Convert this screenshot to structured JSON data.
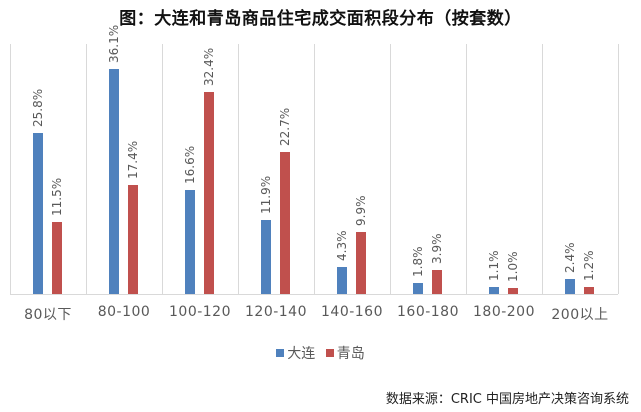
{
  "chart_data": {
    "type": "bar",
    "title": "图：大连和青岛商品住宅成交面积段分布（按套数）",
    "xlabel": "",
    "ylabel": "",
    "categories": [
      "80以下",
      "80-100",
      "100-120",
      "120-140",
      "140-160",
      "160-180",
      "180-200",
      "200以上"
    ],
    "series": [
      {
        "name": "大连",
        "color": "#4f81bd",
        "values": [
          25.8,
          36.1,
          16.6,
          11.9,
          4.3,
          1.8,
          1.1,
          2.4
        ],
        "labels": [
          "25.8%",
          "36.1%",
          "16.6%",
          "11.9%",
          "4.3%",
          "1.8%",
          "1.1%",
          "2.4%"
        ]
      },
      {
        "name": "青岛",
        "color": "#c0504d",
        "values": [
          11.5,
          17.4,
          32.4,
          22.7,
          9.9,
          3.9,
          1.0,
          1.2
        ],
        "labels": [
          "11.5%",
          "17.4%",
          "32.4%",
          "22.7%",
          "9.9%",
          "3.9%",
          "1.0%",
          "1.2%"
        ]
      }
    ],
    "ylim": [
      0,
      40
    ],
    "grid": "vertical category separators",
    "legend_position": "bottom"
  },
  "source": "数据来源：CRIC 中国房地产决策咨询系统"
}
